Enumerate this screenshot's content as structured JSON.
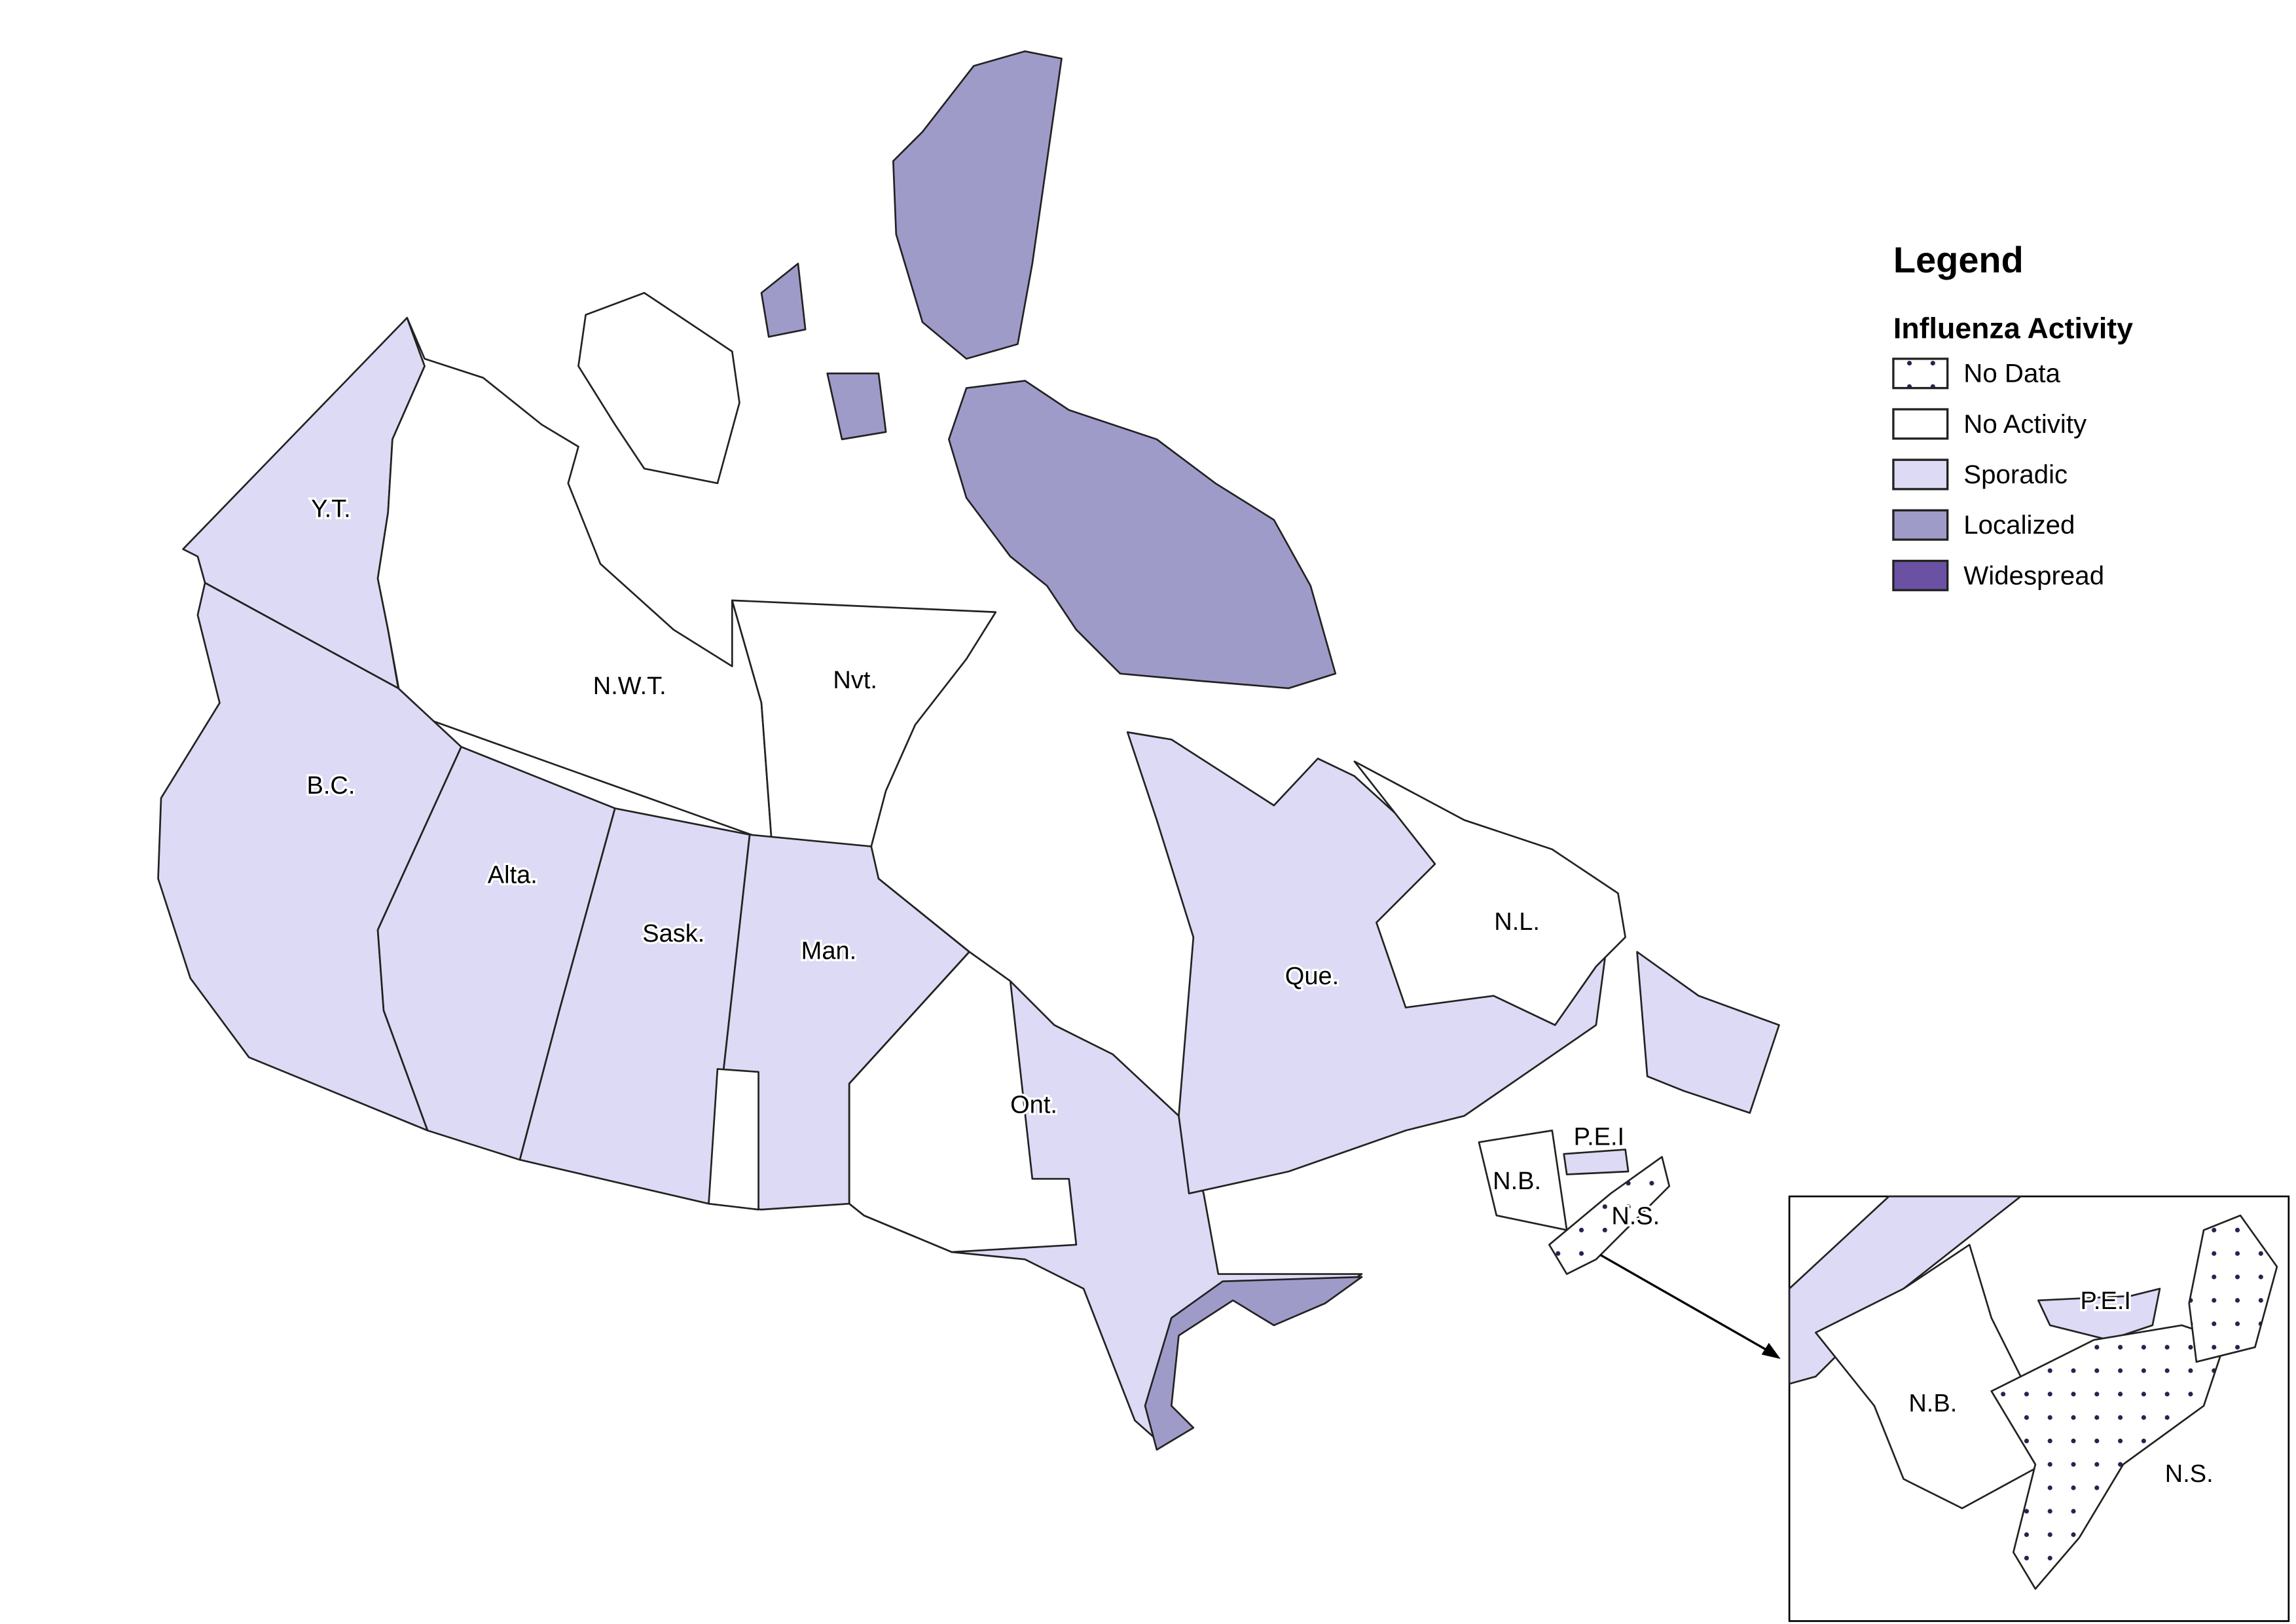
{
  "legend": {
    "title": "Legend",
    "subtitle": "Influenza Activity",
    "items": [
      {
        "key": "nodata",
        "label": "No Data",
        "color": "#ffffff",
        "pattern": "dots"
      },
      {
        "key": "none",
        "label": "No Activity",
        "color": "#ffffff"
      },
      {
        "key": "sporadic",
        "label": "Sporadic",
        "color": "#dcdaf4"
      },
      {
        "key": "localized",
        "label": "Localized",
        "color": "#9f9bc9"
      },
      {
        "key": "widespread",
        "label": "Widespread",
        "color": "#6a51a3"
      }
    ]
  },
  "labels": {
    "yt": "Y.T.",
    "nwt": "N.W.T.",
    "nvt": "Nvt.",
    "bc": "B.C.",
    "alta": "Alta.",
    "sask": "Sask.",
    "man": "Man.",
    "ont": "Ont.",
    "que": "Que.",
    "nl": "N.L.",
    "nb": "N.B.",
    "pei": "P.E.I",
    "ns": "N.S."
  },
  "inset_labels": {
    "nb": "N.B.",
    "pei": "P.E.I",
    "ns": "N.S."
  },
  "regions": [
    {
      "id": "yt",
      "activity": "sporadic"
    },
    {
      "id": "nwt",
      "activity": "none"
    },
    {
      "id": "nvt-mainland",
      "activity": "none"
    },
    {
      "id": "nvt-baffin",
      "activity": "localized"
    },
    {
      "id": "nvt-ellesmere",
      "activity": "localized"
    },
    {
      "id": "nwt-victoria",
      "activity": "none"
    },
    {
      "id": "bc",
      "activity": "sporadic"
    },
    {
      "id": "alta",
      "activity": "sporadic"
    },
    {
      "id": "sask",
      "activity": "sporadic"
    },
    {
      "id": "man",
      "activity": "sporadic"
    },
    {
      "id": "man-south-west",
      "activity": "none"
    },
    {
      "id": "ont",
      "activity": "sporadic"
    },
    {
      "id": "ont-north",
      "activity": "none"
    },
    {
      "id": "ont-south",
      "activity": "localized"
    },
    {
      "id": "que",
      "activity": "sporadic"
    },
    {
      "id": "nl-labrador",
      "activity": "none"
    },
    {
      "id": "nl-island",
      "activity": "sporadic"
    },
    {
      "id": "nb",
      "activity": "none"
    },
    {
      "id": "pei",
      "activity": "sporadic"
    },
    {
      "id": "ns",
      "activity": "nodata"
    }
  ]
}
